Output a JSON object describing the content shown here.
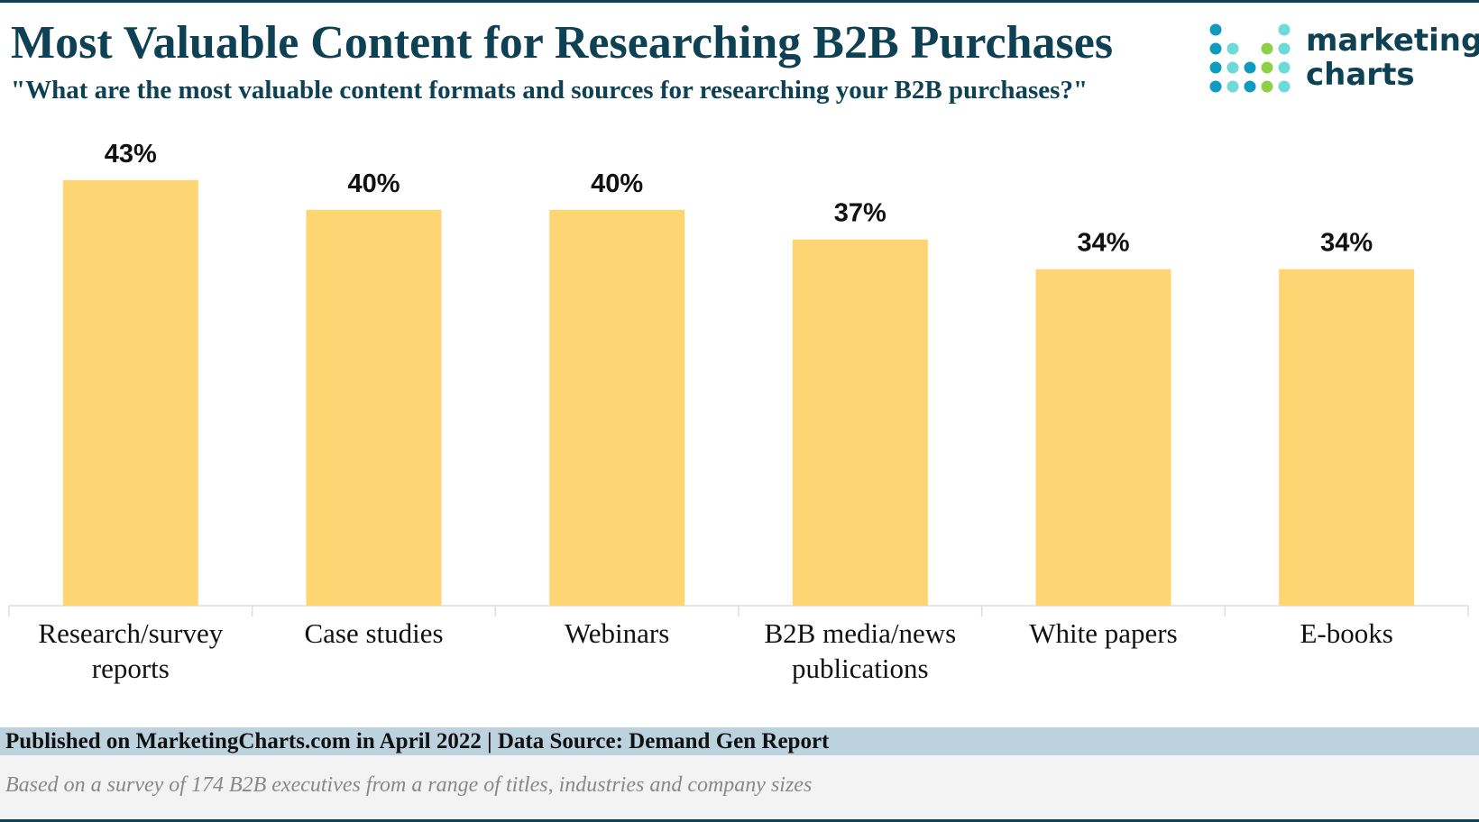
{
  "header": {
    "title": "Most Valuable Content for Researching B2B Purchases",
    "subtitle": "\"What are the most valuable content formats and sources for researching your B2B purchases?\""
  },
  "logo": {
    "line1": "marketing",
    "line2": "charts",
    "colors": [
      "#0f9bbf",
      "#6cdad6",
      "#8fd146"
    ]
  },
  "chart_data": {
    "type": "bar",
    "categories": [
      "Research/survey reports",
      "Case studies",
      "Webinars",
      "B2B media/news publications",
      "White papers",
      "E-books"
    ],
    "category_lines": [
      [
        "Research/survey",
        "reports"
      ],
      [
        "Case studies"
      ],
      [
        "Webinars"
      ],
      [
        "B2B media/news",
        "publications"
      ],
      [
        "White papers"
      ],
      [
        "E-books"
      ]
    ],
    "values": [
      43,
      40,
      40,
      37,
      34,
      34
    ],
    "value_labels": [
      "43%",
      "40%",
      "40%",
      "37%",
      "34%",
      "34%"
    ],
    "unit": "%",
    "ylim": [
      0,
      45
    ],
    "grid": false,
    "legend": "none",
    "bar_color": "#fdd673",
    "title": "Most Valuable Content for Researching B2B Purchases"
  },
  "footer": {
    "published": "Published on MarketingCharts.com in April 2022 | Data Source: Demand Gen Report",
    "note": "Based on a survey of 174 B2B executives from a range of titles, industries and company sizes"
  }
}
